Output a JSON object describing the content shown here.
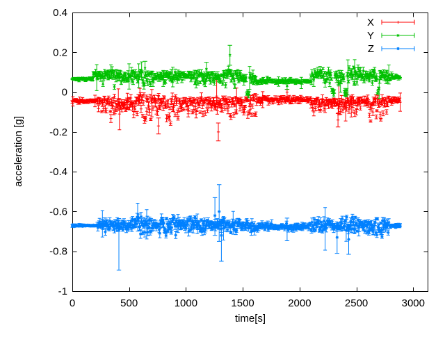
{
  "chart_data": {
    "type": "scatter",
    "style": "points-with-errorbars",
    "title": "",
    "xlabel": "time[s]",
    "ylabel": "acceleration [g]",
    "xlim": [
      0,
      3130
    ],
    "ylim": [
      -1,
      0.4
    ],
    "xticks": [
      0,
      500,
      1000,
      1500,
      2000,
      2500,
      3000
    ],
    "yticks": [
      0.4,
      0.2,
      0,
      -0.2,
      -0.4,
      -0.6,
      -0.8,
      -1
    ],
    "grid": false,
    "legend_position": "top-right-inside",
    "background_color": "#ffffff",
    "axis_color": "#000000",
    "sample_step_s": 5,
    "t_end_s": 2890,
    "series": [
      {
        "name": "X",
        "color": "#ff0000",
        "marker": "plus",
        "seed": 7,
        "segments": [
          [
            0,
            225,
            -0.044,
            0.005,
            0.005,
            1,
            1
          ],
          [
            225,
            1625,
            -0.05,
            0.025,
            0.012,
            0.65,
            1.9
          ],
          [
            1625,
            2100,
            -0.038,
            0.008,
            0.008,
            1,
            1
          ],
          [
            2100,
            2790,
            -0.052,
            0.024,
            0.012,
            0.65,
            1.7
          ],
          [
            2790,
            2890,
            -0.04,
            0.01,
            0.008,
            1,
            1
          ]
        ],
        "events": [
          {
            "t": 758,
            "y": -0.17,
            "lo": -0.21,
            "hi": -0.13
          },
          {
            "t": 1270,
            "y": -0.02,
            "lo": -0.06,
            "hi": 0.065
          },
          {
            "t": 1285,
            "y": -0.2,
            "lo": -0.245,
            "hi": -0.155
          },
          {
            "t": 1890,
            "y": 0.0,
            "lo": -0.028,
            "hi": 0.014
          },
          {
            "t": 2338,
            "y": -0.14,
            "lo": -0.175,
            "hi": -0.108
          }
        ]
      },
      {
        "name": "Y",
        "color": "#00c000",
        "marker": "cross",
        "seed": 13,
        "segments": [
          [
            0,
            185,
            0.066,
            0.005,
            0.005,
            1,
            1
          ],
          [
            185,
            1535,
            0.082,
            0.016,
            0.011,
            0.9,
            1.5
          ],
          [
            1535,
            1560,
            -0.005,
            0.012,
            0.008,
            1,
            1
          ],
          [
            1560,
            1625,
            0.07,
            0.014,
            0.01,
            1,
            1
          ],
          [
            1625,
            2100,
            0.053,
            0.008,
            0.006,
            1,
            1
          ],
          [
            2100,
            2283,
            0.085,
            0.018,
            0.011,
            0.9,
            1.6
          ],
          [
            2283,
            2308,
            0.0,
            0.012,
            0.008,
            1,
            1
          ],
          [
            2308,
            2393,
            0.08,
            0.018,
            0.011,
            0.9,
            1.6
          ],
          [
            2393,
            2413,
            0.005,
            0.01,
            0.008,
            1,
            1
          ],
          [
            2413,
            2683,
            0.082,
            0.018,
            0.011,
            0.9,
            1.6
          ],
          [
            2683,
            2702,
            0.005,
            0.01,
            0.008,
            1,
            1
          ],
          [
            2702,
            2790,
            0.08,
            0.015,
            0.01,
            1,
            1.3
          ],
          [
            2790,
            2890,
            0.076,
            0.01,
            0.006,
            1,
            1
          ]
        ],
        "events": [
          {
            "t": 640,
            "y": 0.12,
            "lo": 0.09,
            "hi": 0.155
          },
          {
            "t": 1180,
            "y": 0.115,
            "lo": 0.085,
            "hi": 0.15
          },
          {
            "t": 1387,
            "y": 0.185,
            "lo": 0.135,
            "hi": 0.235
          },
          {
            "t": 1890,
            "y": 0.032,
            "lo": 0.014,
            "hi": 0.05
          }
        ]
      },
      {
        "name": "Z",
        "color": "#0080ff",
        "marker": "asterisk",
        "seed": 29,
        "segments": [
          [
            0,
            220,
            -0.671,
            0.003,
            0.004,
            1,
            1
          ],
          [
            220,
            1620,
            -0.669,
            0.02,
            0.014,
            1,
            1.15
          ],
          [
            1620,
            2100,
            -0.676,
            0.009,
            0.008,
            1,
            1
          ],
          [
            2100,
            2790,
            -0.668,
            0.023,
            0.013,
            1,
            1.15
          ],
          [
            2790,
            2890,
            -0.673,
            0.006,
            0.005,
            1,
            1
          ]
        ],
        "events": [
          {
            "t": 410,
            "y": -0.68,
            "lo": -0.895,
            "hi": -0.635
          },
          {
            "t": 1255,
            "y": -0.62,
            "lo": -0.72,
            "hi": -0.53
          },
          {
            "t": 1292,
            "y": -0.6,
            "lo": -0.75,
            "hi": -0.465
          },
          {
            "t": 1312,
            "y": -0.72,
            "lo": -0.85,
            "hi": -0.64
          },
          {
            "t": 1890,
            "y": -0.672,
            "lo": -0.747,
            "hi": -0.633
          },
          {
            "t": 2330,
            "y": -0.73,
            "lo": -0.81,
            "hi": -0.675
          },
          {
            "t": 2432,
            "y": -0.74,
            "lo": -0.815,
            "hi": -0.7
          }
        ]
      }
    ]
  }
}
